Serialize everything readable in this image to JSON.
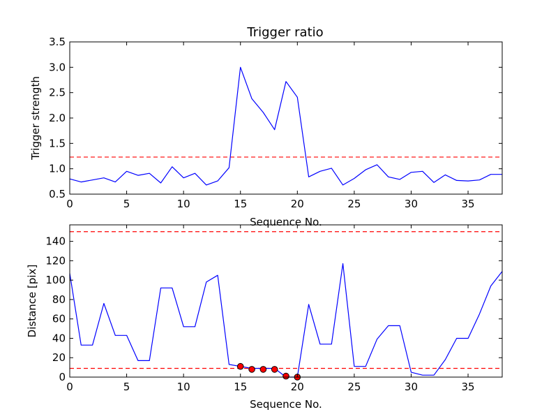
{
  "chart_data": [
    {
      "type": "line",
      "title": "Trigger ratio",
      "xlabel": "Sequence No.",
      "ylabel": "Trigger strength",
      "xlim": [
        0,
        38
      ],
      "ylim": [
        0.5,
        3.5
      ],
      "xticks": [
        0,
        5,
        10,
        15,
        20,
        25,
        30,
        35
      ],
      "yticks": [
        0.5,
        1.0,
        1.5,
        2.0,
        2.5,
        3.0,
        3.5
      ],
      "ytick_labels": [
        "0.5",
        "1.0",
        "1.5",
        "2.0",
        "2.5",
        "3.0",
        "3.5"
      ],
      "grid": false,
      "series": [
        {
          "style": "line",
          "color": "#0000ff",
          "x": [
            0,
            1,
            2,
            3,
            4,
            5,
            6,
            7,
            8,
            9,
            10,
            11,
            12,
            13,
            14,
            15,
            16,
            17,
            18,
            19,
            20,
            21,
            22,
            23,
            24,
            25,
            26,
            27,
            28,
            29,
            30,
            31,
            32,
            33,
            34,
            35,
            36,
            37,
            38
          ],
          "values": [
            0.8,
            0.74,
            0.78,
            0.82,
            0.74,
            0.95,
            0.87,
            0.91,
            0.72,
            1.04,
            0.82,
            0.91,
            0.68,
            0.76,
            1.02,
            3.0,
            2.38,
            2.11,
            1.77,
            2.72,
            2.41,
            0.84,
            0.95,
            1.01,
            0.68,
            0.81,
            0.98,
            1.08,
            0.84,
            0.79,
            0.93,
            0.95,
            0.73,
            0.88,
            0.77,
            0.76,
            0.78,
            0.89,
            0.89
          ]
        }
      ],
      "reference_lines": [
        {
          "y": 1.23,
          "color": "#ff0000",
          "style": "dashed"
        }
      ]
    },
    {
      "type": "line",
      "title": "",
      "xlabel": "Sequence No.",
      "ylabel": "Distance [pix]",
      "xlim": [
        0,
        38
      ],
      "ylim": [
        0,
        157
      ],
      "xticks": [
        0,
        5,
        10,
        15,
        20,
        25,
        30,
        35
      ],
      "yticks": [
        0,
        20,
        40,
        60,
        80,
        100,
        120,
        140
      ],
      "ytick_labels": [
        "0",
        "20",
        "40",
        "60",
        "80",
        "100",
        "120",
        "140"
      ],
      "grid": false,
      "series": [
        {
          "style": "line",
          "color": "#0000ff",
          "x": [
            0,
            1,
            2,
            3,
            4,
            5,
            6,
            7,
            8,
            9,
            10,
            11,
            12,
            13,
            14,
            15,
            16,
            17,
            18,
            19,
            20,
            21,
            22,
            23,
            24,
            25,
            26,
            27,
            28,
            29,
            30,
            31,
            32,
            33,
            34,
            35,
            36,
            37,
            38
          ],
          "values": [
            107,
            33,
            33,
            76,
            43,
            43,
            17,
            17,
            92,
            92,
            52,
            52,
            98,
            105,
            13,
            11,
            9,
            9,
            9,
            0,
            0,
            75,
            34,
            34,
            117,
            11,
            11,
            39,
            53,
            53,
            5,
            2,
            2,
            18,
            40,
            40,
            65,
            94,
            109
          ]
        },
        {
          "style": "markers",
          "color": "#ff0000",
          "x": [
            15,
            16,
            17,
            18,
            19,
            20
          ],
          "values": [
            11,
            8,
            8,
            8,
            1,
            0
          ]
        }
      ],
      "reference_lines": [
        {
          "y": 150,
          "color": "#ff0000",
          "style": "dashed"
        },
        {
          "y": 9,
          "color": "#ff0000",
          "style": "dashed"
        }
      ]
    }
  ]
}
